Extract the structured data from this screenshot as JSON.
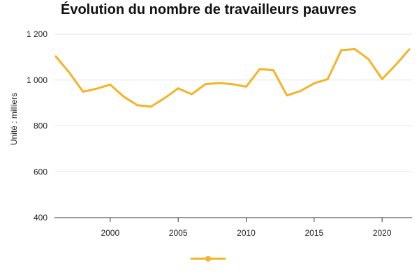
{
  "chart_data": {
    "type": "line",
    "title": "Évolution du nombre de travailleurs pauvres",
    "xlabel": "",
    "ylabel": "Unité : milliers",
    "x": [
      1996,
      1997,
      1998,
      1999,
      2000,
      2001,
      2002,
      2003,
      2004,
      2005,
      2006,
      2007,
      2008,
      2009,
      2010,
      2011,
      2012,
      2013,
      2014,
      2015,
      2016,
      2017,
      2018,
      2019,
      2020,
      2021,
      2022
    ],
    "series": [
      {
        "name": "",
        "color": "#F5B325",
        "values": [
          1103,
          1032,
          949,
          962,
          980,
          927,
          890,
          884,
          921,
          964,
          938,
          982,
          987,
          982,
          971,
          1048,
          1043,
          933,
          952,
          986,
          1004,
          1130,
          1135,
          1091,
          1004,
          1066,
          1134
        ]
      }
    ],
    "x_ticks": [
      "2000",
      "2005",
      "2010",
      "2015",
      "2020"
    ],
    "y_ticks": [
      "400",
      "600",
      "800",
      "1 000",
      "1 200"
    ],
    "xlim": [
      1995.9,
      2022.2
    ],
    "ylim": [
      400,
      1200
    ],
    "grid": "horizontal",
    "legend_position": "bottom-center"
  }
}
